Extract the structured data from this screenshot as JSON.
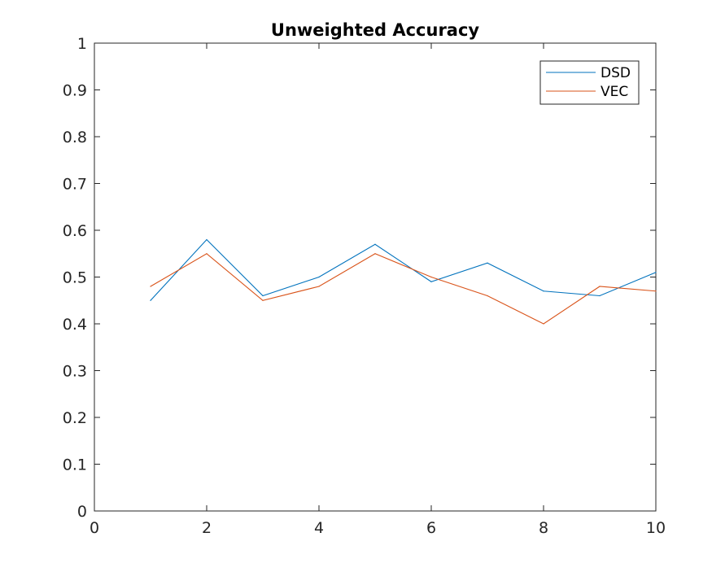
{
  "chart_data": {
    "type": "line",
    "title": "Unweighted Accuracy",
    "xlabel": "",
    "ylabel": "",
    "xlim": [
      0,
      10
    ],
    "ylim": [
      0,
      1
    ],
    "x_ticks": [
      0,
      2,
      4,
      6,
      8,
      10
    ],
    "y_ticks": [
      0,
      0.1,
      0.2,
      0.3,
      0.4,
      0.5,
      0.6,
      0.7,
      0.8,
      0.9,
      1
    ],
    "x_tick_labels": [
      "0",
      "2",
      "4",
      "6",
      "8",
      "10"
    ],
    "y_tick_labels": [
      "0",
      "0.1",
      "0.2",
      "0.3",
      "0.4",
      "0.5",
      "0.6",
      "0.7",
      "0.8",
      "0.9",
      "1"
    ],
    "grid": false,
    "legend_position": "top-right",
    "x": [
      1,
      2,
      3,
      4,
      5,
      6,
      7,
      8,
      9,
      10
    ],
    "series": [
      {
        "name": "DSD",
        "color": "#0072BD",
        "values": [
          0.45,
          0.58,
          0.46,
          0.5,
          0.57,
          0.49,
          0.53,
          0.47,
          0.46,
          0.51
        ]
      },
      {
        "name": "VEC",
        "color": "#D95319",
        "values": [
          0.48,
          0.55,
          0.45,
          0.48,
          0.55,
          0.5,
          0.46,
          0.4,
          0.48,
          0.47
        ]
      }
    ]
  }
}
